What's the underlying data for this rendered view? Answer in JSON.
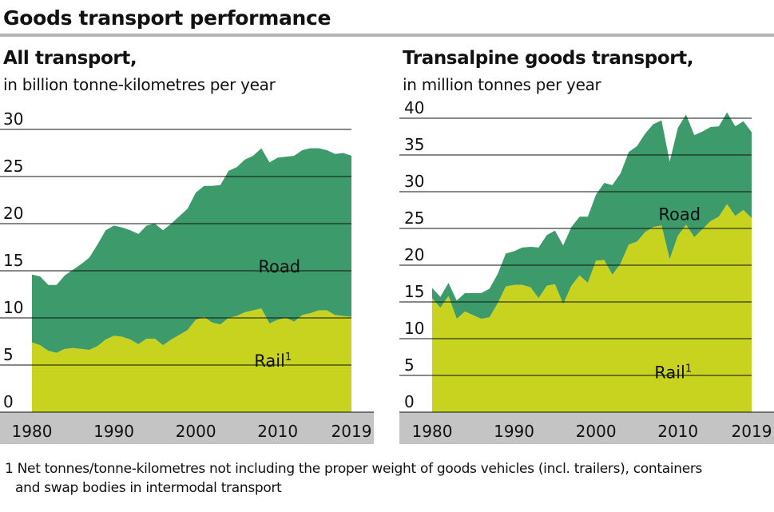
{
  "title": "Goods transport performance",
  "footnote": {
    "line1": "1 Net tonnes/tonne-kilometres not including the proper weight of goods vehicles (incl. trailers), containers",
    "line2": "and swap bodies in intermodal transport"
  },
  "colors": {
    "road": "#3d9b6b",
    "rail": "#c7d31f",
    "axis_band": "#c4c4c4",
    "grid": "#111111"
  },
  "chart_data": [
    {
      "type": "area",
      "title": "All transport,",
      "subtitle": "in billion tonne-kilometres per year",
      "stacked": true,
      "x": [
        1980,
        1981,
        1982,
        1983,
        1984,
        1985,
        1986,
        1987,
        1988,
        1989,
        1990,
        1991,
        1992,
        1993,
        1994,
        1995,
        1996,
        1997,
        1998,
        1999,
        2000,
        2001,
        2002,
        2003,
        2004,
        2005,
        2006,
        2007,
        2008,
        2009,
        2010,
        2011,
        2012,
        2013,
        2014,
        2015,
        2016,
        2017,
        2018,
        2019
      ],
      "series": [
        {
          "name": "Rail",
          "label": "Rail",
          "superscript": "1",
          "values": [
            7.4,
            7.1,
            6.5,
            6.3,
            6.7,
            6.8,
            6.7,
            6.6,
            7.0,
            7.7,
            8.1,
            8.0,
            7.7,
            7.2,
            7.8,
            7.8,
            7.1,
            7.7,
            8.2,
            8.7,
            9.8,
            10.1,
            9.5,
            9.3,
            10.0,
            10.2,
            10.6,
            10.8,
            11.0,
            9.4,
            9.8,
            10.0,
            9.6,
            10.3,
            10.5,
            10.8,
            10.8,
            10.3,
            10.2,
            10.1
          ]
        },
        {
          "name": "Road",
          "label": "Road",
          "values": [
            7.2,
            7.3,
            7.0,
            7.2,
            7.8,
            8.3,
            9.0,
            9.8,
            10.8,
            11.6,
            11.7,
            11.6,
            11.6,
            11.7,
            12.0,
            12.2,
            12.2,
            12.3,
            12.6,
            12.9,
            13.5,
            13.9,
            14.5,
            14.8,
            15.6,
            15.8,
            16.2,
            16.4,
            17.0,
            17.1,
            17.2,
            17.1,
            17.6,
            17.5,
            17.5,
            17.2,
            17.0,
            17.1,
            17.3,
            17.1
          ]
        }
      ],
      "ylim": [
        0,
        30
      ],
      "yticks": [
        0,
        5,
        10,
        15,
        20,
        25,
        30
      ],
      "xticks": [
        "1980",
        "1990",
        "2000",
        "2010",
        "2019"
      ],
      "xtick_values": [
        1980,
        1990,
        2000,
        2010,
        2019
      ],
      "grid": true,
      "label_positions": {
        "Road": 15.5,
        "Rail": 5.5
      }
    },
    {
      "type": "area",
      "title": "Transalpine goods transport,",
      "subtitle": "in million tonnes per year",
      "stacked": true,
      "x": [
        1980,
        1981,
        1982,
        1983,
        1984,
        1985,
        1986,
        1987,
        1988,
        1989,
        1990,
        1991,
        1992,
        1993,
        1994,
        1995,
        1996,
        1997,
        1998,
        1999,
        2000,
        2001,
        2002,
        2003,
        2004,
        2005,
        2006,
        2007,
        2008,
        2009,
        2010,
        2011,
        2012,
        2013,
        2014,
        2015,
        2016,
        2017,
        2018,
        2019
      ],
      "series": [
        {
          "name": "Rail",
          "label": "Rail",
          "superscript": "1",
          "values": [
            15.5,
            14.2,
            15.8,
            12.7,
            13.7,
            13.2,
            12.7,
            12.9,
            14.8,
            17.1,
            17.3,
            17.3,
            17.0,
            15.5,
            17.2,
            17.4,
            14.7,
            17.2,
            18.6,
            17.6,
            20.6,
            20.7,
            18.7,
            20.2,
            22.8,
            23.2,
            24.5,
            25.2,
            25.4,
            20.8,
            24.0,
            25.5,
            23.8,
            24.9,
            26.0,
            26.6,
            28.3,
            26.7,
            27.5,
            26.4
          ]
        },
        {
          "name": "Road",
          "label": "Road",
          "values": [
            1.4,
            1.5,
            1.8,
            2.5,
            2.5,
            3.0,
            3.5,
            3.9,
            4.0,
            4.5,
            4.6,
            5.1,
            5.5,
            6.9,
            6.9,
            7.3,
            8.0,
            8.0,
            8.0,
            9.0,
            9.0,
            10.5,
            12.2,
            12.3,
            12.6,
            13.0,
            13.4,
            14.0,
            14.3,
            13.3,
            14.7,
            15.0,
            13.9,
            13.3,
            12.8,
            12.3,
            12.5,
            12.2,
            12.1,
            11.7
          ]
        }
      ],
      "ylim": [
        0,
        40
      ],
      "yticks": [
        0,
        5,
        10,
        15,
        20,
        25,
        30,
        35,
        40
      ],
      "xticks": [
        "1980",
        "1990",
        "2000",
        "2010",
        "2019"
      ],
      "xtick_values": [
        1980,
        1990,
        2000,
        2010,
        2019
      ],
      "grid": true,
      "label_positions": {
        "Road": 27,
        "Rail": 5.5
      }
    }
  ]
}
